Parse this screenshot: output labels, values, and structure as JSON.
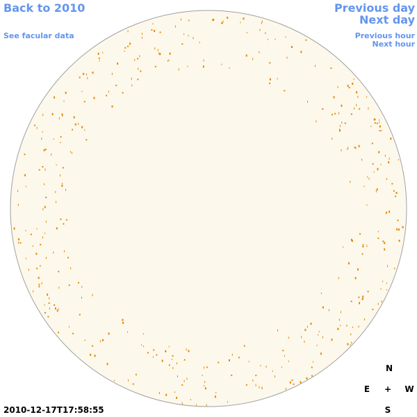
{
  "nav": {
    "back": "Back to 2010",
    "facular": "See facular data",
    "previous_day": "Previous day",
    "next_day": "Next day",
    "previous_hour": "Previous hour",
    "next_hour": "Next hour"
  },
  "compass": {
    "north": "N",
    "east": "E",
    "center": "+",
    "west": "W",
    "south": "S"
  },
  "timestamp": "2010-12-17T17:58:55"
}
